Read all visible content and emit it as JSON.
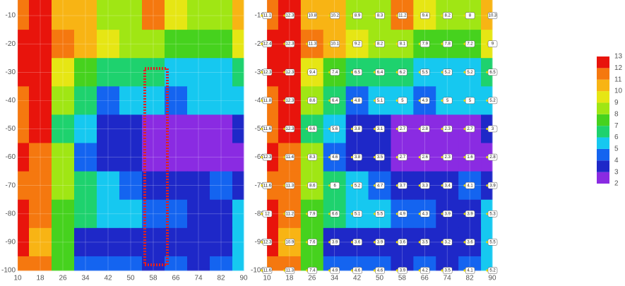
{
  "chart_data": {
    "type": "contour",
    "x": [
      10,
      18,
      26,
      34,
      42,
      50,
      58,
      66,
      74,
      82,
      90
    ],
    "y": [
      -10,
      -20,
      -30,
      -40,
      -50,
      -60,
      -70,
      -80,
      -90,
      -100
    ],
    "z": [
      [
        11.1,
        12.3,
        10.8,
        10.2,
        8.9,
        8.3,
        11.2,
        9.4,
        8.2,
        8.0,
        10.3
      ],
      [
        12.4,
        12.3,
        11.3,
        10.1,
        9.2,
        8.2,
        8.1,
        7.9,
        7.8,
        7.2,
        9.0
      ],
      [
        12.3,
        12.3,
        9.4,
        7.4,
        6.5,
        6.4,
        6.2,
        5.5,
        5.2,
        5.2,
        6.5
      ],
      [
        11.8,
        12.3,
        8.6,
        6.4,
        4.8,
        5.1,
        5.0,
        4.9,
        5.0,
        5.0,
        5.2
      ],
      [
        11.6,
        12.3,
        6.6,
        5.6,
        3.8,
        3.1,
        2.7,
        2.8,
        2.3,
        2.7,
        3.0
      ],
      [
        12.3,
        11.4,
        8.3,
        4.6,
        3.8,
        3.5,
        2.7,
        2.6,
        2.3,
        1.6,
        2.8
      ],
      [
        11.6,
        11.3,
        8.6,
        6.0,
        5.2,
        4.7,
        3.7,
        3.3,
        3.4,
        4.1,
        3.9
      ],
      [
        12.0,
        11.2,
        7.9,
        6.6,
        5.1,
        5.5,
        4.9,
        4.3,
        3.9,
        3.9,
        5.3
      ],
      [
        12.3,
        10.9,
        7.6,
        3.9,
        3.6,
        3.9,
        3.6,
        3.5,
        3.2,
        3.6,
        5.5
      ],
      [
        11.6,
        11.3,
        7.4,
        4.9,
        4.6,
        4.6,
        3.9,
        4.2,
        3.5,
        4.1,
        5.2
      ]
    ],
    "xlim": [
      10,
      90
    ],
    "ylim": [
      -100,
      -4.5
    ],
    "xticks": [
      10,
      18,
      26,
      34,
      42,
      50,
      58,
      66,
      74,
      82,
      90
    ],
    "yticks": [
      -10,
      -20,
      -30,
      -40,
      -50,
      -60,
      -70,
      -80,
      -90,
      -100
    ],
    "levels": [
      2,
      3,
      4,
      5,
      6,
      7,
      8,
      9,
      10,
      11,
      12,
      13
    ],
    "colors": [
      "#8a2be2",
      "#1e28c8",
      "#1464f0",
      "#16c8f0",
      "#1ed26e",
      "#46d21e",
      "#a0e614",
      "#e6e614",
      "#f8b414",
      "#f5780f",
      "#e8140c"
    ]
  }
}
